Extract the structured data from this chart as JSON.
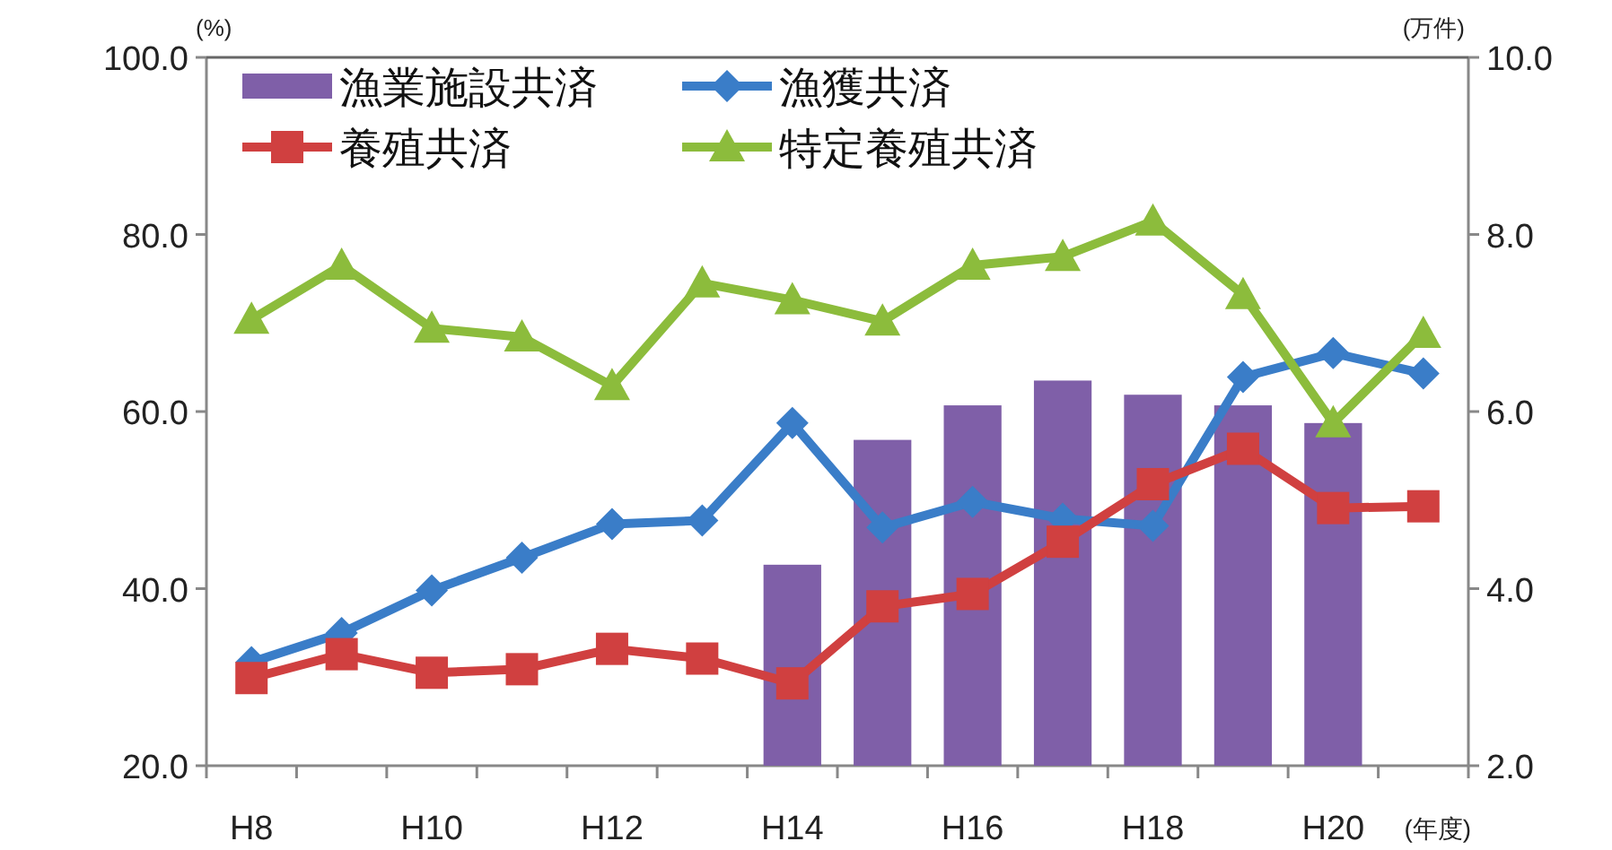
{
  "chart_data": {
    "type": "line",
    "xlabel": "(年度)",
    "ylabel": "(%)",
    "y2label": "(万件)",
    "legend": "top left",
    "categories": [
      "H8",
      null,
      "H10",
      null,
      "H12",
      null,
      "H14",
      null,
      "H16",
      null,
      "H18",
      null,
      "H20",
      null
    ],
    "ylim": [
      20,
      100
    ],
    "yticks": [
      {
        "value": 20,
        "label": "20.0"
      },
      {
        "value": 40,
        "label": "40.0"
      },
      {
        "value": 60,
        "label": "60.0"
      },
      {
        "value": 80,
        "label": "80.0"
      },
      {
        "value": 100,
        "label": "100.0"
      }
    ],
    "y2lim": [
      2,
      10
    ],
    "y2ticks": [
      {
        "value": 2,
        "label": "2.0"
      },
      {
        "value": 4,
        "label": "4.0"
      },
      {
        "value": 6,
        "label": "6.0"
      },
      {
        "value": 8,
        "label": "8.0"
      },
      {
        "value": 10,
        "label": "10.0"
      }
    ],
    "series": [
      {
        "name": "漁業施設共済",
        "type": "bar",
        "axis": "y2",
        "color": "#7f5fa8",
        "values": [
          null,
          null,
          null,
          null,
          null,
          null,
          4.27,
          5.68,
          6.07,
          6.35,
          6.19,
          6.07,
          5.87,
          null
        ]
      },
      {
        "name": "漁獲共済",
        "marker": "diamond",
        "color": "#3a7dc8",
        "values": [
          31.7,
          35.0,
          39.8,
          43.5,
          47.3,
          47.7,
          58.7,
          46.9,
          49.8,
          47.9,
          47.1,
          63.9,
          66.6,
          64.3
        ]
      },
      {
        "name": "養殖共済",
        "marker": "square",
        "color": "#d04040",
        "values": [
          29.9,
          32.6,
          30.5,
          30.9,
          33.2,
          32.1,
          29.3,
          38.0,
          39.4,
          45.3,
          51.8,
          55.8,
          49.1,
          49.3
        ]
      },
      {
        "name": "特定養殖共済",
        "marker": "triangle",
        "color": "#8cbc3c",
        "values": [
          70.4,
          76.5,
          69.4,
          68.4,
          62.9,
          74.5,
          72.6,
          70.2,
          76.5,
          77.5,
          81.5,
          73.2,
          58.7,
          68.8
        ]
      }
    ]
  }
}
